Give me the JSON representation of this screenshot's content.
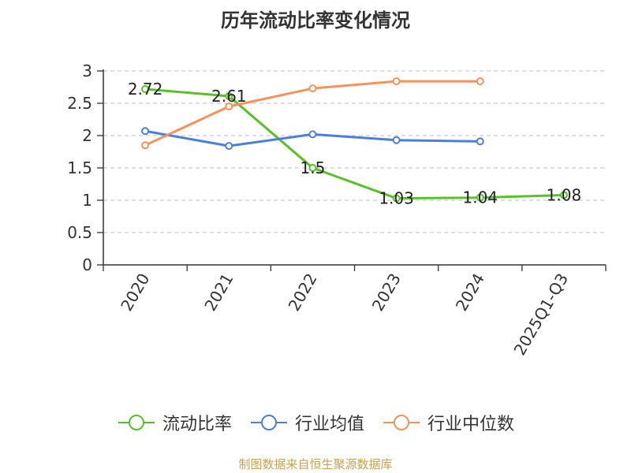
{
  "chart_data": {
    "type": "line",
    "title": "历年流动比率变化情况",
    "categories": [
      "2020",
      "2021",
      "2022",
      "2023",
      "2024",
      "2025Q1-Q3"
    ],
    "yticks": [
      "0",
      "0.5",
      "1",
      "1.5",
      "2",
      "2.5",
      "3"
    ],
    "ylim": [
      0,
      3
    ],
    "xlabel": "",
    "ylabel": "",
    "grid": "horizontal-dashed",
    "legend_position": "bottom",
    "series": [
      {
        "name": "流动比率",
        "color": "#5ac02a",
        "values": [
          2.72,
          2.61,
          1.5,
          1.03,
          1.04,
          1.08
        ],
        "labels": [
          "2.72",
          "2.61",
          "1.5",
          "1.03",
          "1.04",
          "1.08"
        ]
      },
      {
        "name": "行业均值",
        "color": "#4a7fdc",
        "values": [
          2.07,
          1.84,
          2.02,
          1.93,
          1.91,
          null
        ]
      },
      {
        "name": "行业中位数",
        "color": "#f5915a",
        "values": [
          1.85,
          2.45,
          2.73,
          2.84,
          2.84,
          null
        ]
      }
    ]
  },
  "source": "制图数据来自恒生聚源数据库"
}
